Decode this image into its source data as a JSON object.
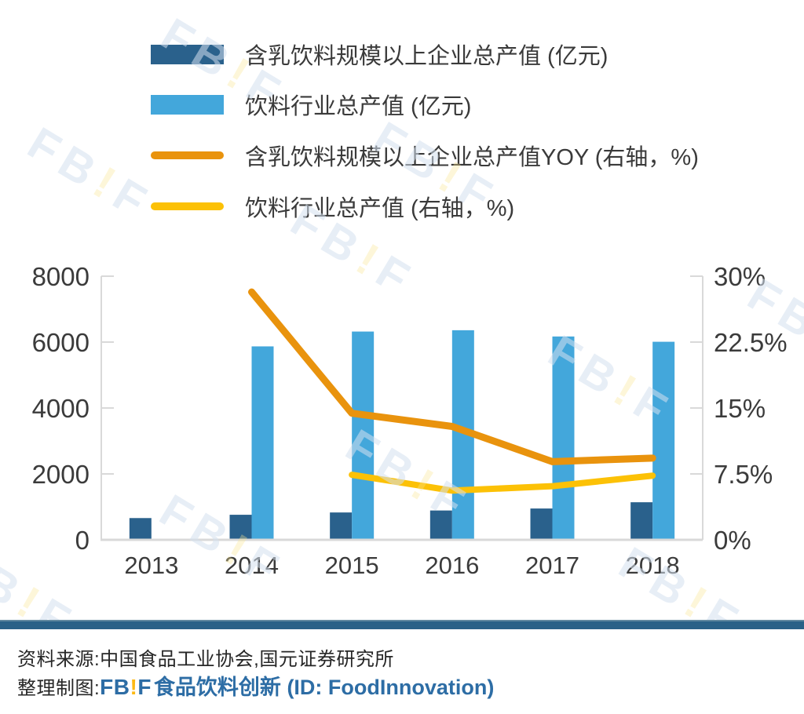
{
  "legend": {
    "items": [
      {
        "swatch": "bar",
        "color": "#2a618c",
        "label": "含乳饮料规模以上企业总产值 (亿元)"
      },
      {
        "swatch": "bar",
        "color": "#43a7db",
        "label": "饮料行业总产值 (亿元)"
      },
      {
        "swatch": "line",
        "color": "#e9930d",
        "label": "含乳饮料规模以上企业总产值YOY (右轴，%)"
      },
      {
        "swatch": "line",
        "color": "#fcc106",
        "label": "饮料行业总产值 (右轴，%)"
      }
    ]
  },
  "chart_data": {
    "type": "bar+line combo, dual axis",
    "categories": [
      "2013",
      "2014",
      "2015",
      "2016",
      "2017",
      "2018"
    ],
    "series": [
      {
        "name": "含乳饮料规模以上企业总产值 (亿元)",
        "type": "bar",
        "axis": "left",
        "color": "#2a618c",
        "values": [
          660,
          760,
          830,
          890,
          950,
          1140
        ]
      },
      {
        "name": "饮料行业总产值 (亿元)",
        "type": "bar",
        "axis": "left",
        "color": "#43a7db",
        "values": [
          null,
          5870,
          6320,
          6360,
          6170,
          6010
        ]
      },
      {
        "name": "含乳饮料规模以上企业总产值YOY (右轴，%)",
        "type": "line",
        "axis": "right",
        "color": "#e9930d",
        "width": 9,
        "values": [
          null,
          28.2,
          14.4,
          12.9,
          8.9,
          9.3
        ]
      },
      {
        "name": "饮料行业总产值 (右轴，%)",
        "type": "line",
        "axis": "right",
        "color": "#fcc106",
        "width": 8,
        "values": [
          null,
          null,
          7.4,
          5.6,
          6.1,
          7.3
        ]
      }
    ],
    "left_axis": {
      "min": 0,
      "max": 8000,
      "ticks": [
        "0",
        "2000",
        "4000",
        "6000",
        "8000"
      ]
    },
    "right_axis": {
      "min": 0,
      "max": 30,
      "ticks": [
        "0%",
        "7.5%",
        "15%",
        "22.5%",
        "30%"
      ]
    },
    "grid": false,
    "legend_position": "top-left",
    "axis_color": "#d9d9d9",
    "tick_label_color": "#3b3b3b"
  },
  "watermark": {
    "parts": [
      {
        "text": "FB",
        "color": "rgba(211,224,239,0.55)"
      },
      {
        "text": "!",
        "color": "rgba(250,228,145,0.35)"
      },
      {
        "text": "F",
        "color": "rgba(211,224,239,0.55)"
      }
    ]
  },
  "footer": {
    "source_line": "资料来源:中国食品工业协会,国元证券研究所",
    "credit_prefix": "整理制图:",
    "logo_fb": "FB",
    "logo_bang": "!",
    "logo_f": "F",
    "credit_suffix": "食品饮料创新 (ID: FoodInnovation)",
    "divider_color": "#2a6187",
    "divider_edge_color": "#61889f",
    "link_color": "#2d6da5",
    "logo_yellow": "#fdb913"
  }
}
